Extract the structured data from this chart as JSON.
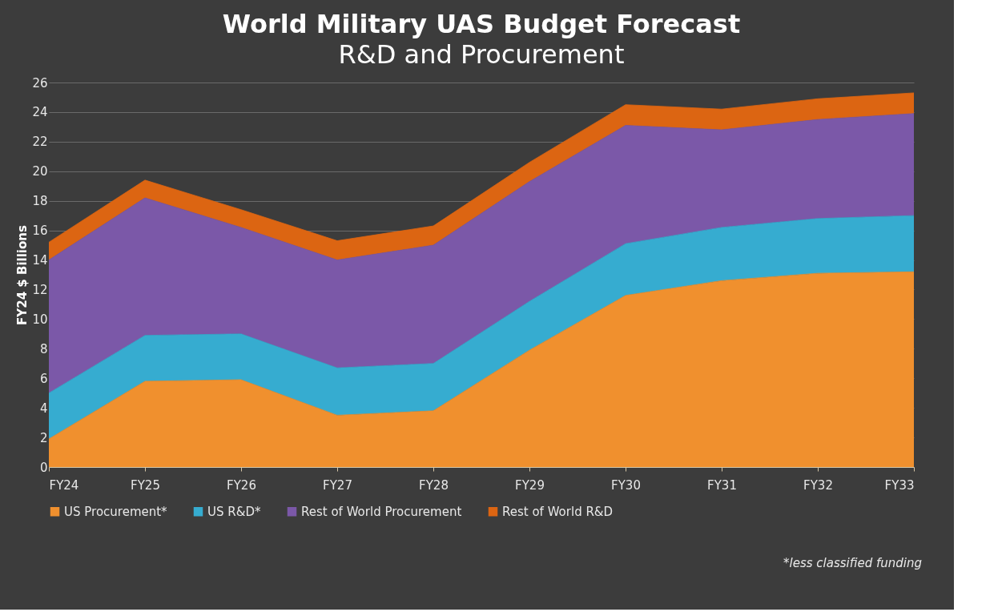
{
  "chart_data": {
    "type": "area",
    "title": "World Military UAS Budget Forecast",
    "subtitle": "R&D and Procurement",
    "ylabel": "FY24 $ Billions",
    "categories": [
      "FY24",
      "FY25",
      "FY26",
      "FY27",
      "FY28",
      "FY29",
      "FY30",
      "FY31",
      "FY32",
      "FY33"
    ],
    "stacked": true,
    "ylim": [
      0,
      26
    ],
    "yticks": [
      0,
      2,
      4,
      6,
      8,
      10,
      12,
      14,
      16,
      18,
      20,
      22,
      24,
      26
    ],
    "grid": "y",
    "legend": "bottom",
    "series": [
      {
        "name": "US Procurement*",
        "color": "#f0902e",
        "values": [
          1.9,
          5.8,
          5.9,
          3.5,
          3.8,
          7.9,
          11.6,
          12.6,
          13.1,
          13.2
        ]
      },
      {
        "name": "US R&D*",
        "color": "#36acd0",
        "values": [
          3.1,
          3.1,
          3.1,
          3.2,
          3.2,
          3.3,
          3.5,
          3.6,
          3.7,
          3.8
        ]
      },
      {
        "name": "Rest of World Procurement",
        "color": "#7b58a8",
        "values": [
          9.0,
          9.3,
          7.2,
          7.3,
          8.0,
          8.1,
          8.0,
          6.6,
          6.7,
          6.9
        ]
      },
      {
        "name": "Rest of World R&D",
        "color": "#dc6512",
        "values": [
          1.2,
          1.2,
          1.2,
          1.3,
          1.3,
          1.3,
          1.4,
          1.4,
          1.4,
          1.4
        ]
      }
    ],
    "annotations": [
      "*less classified funding"
    ]
  }
}
